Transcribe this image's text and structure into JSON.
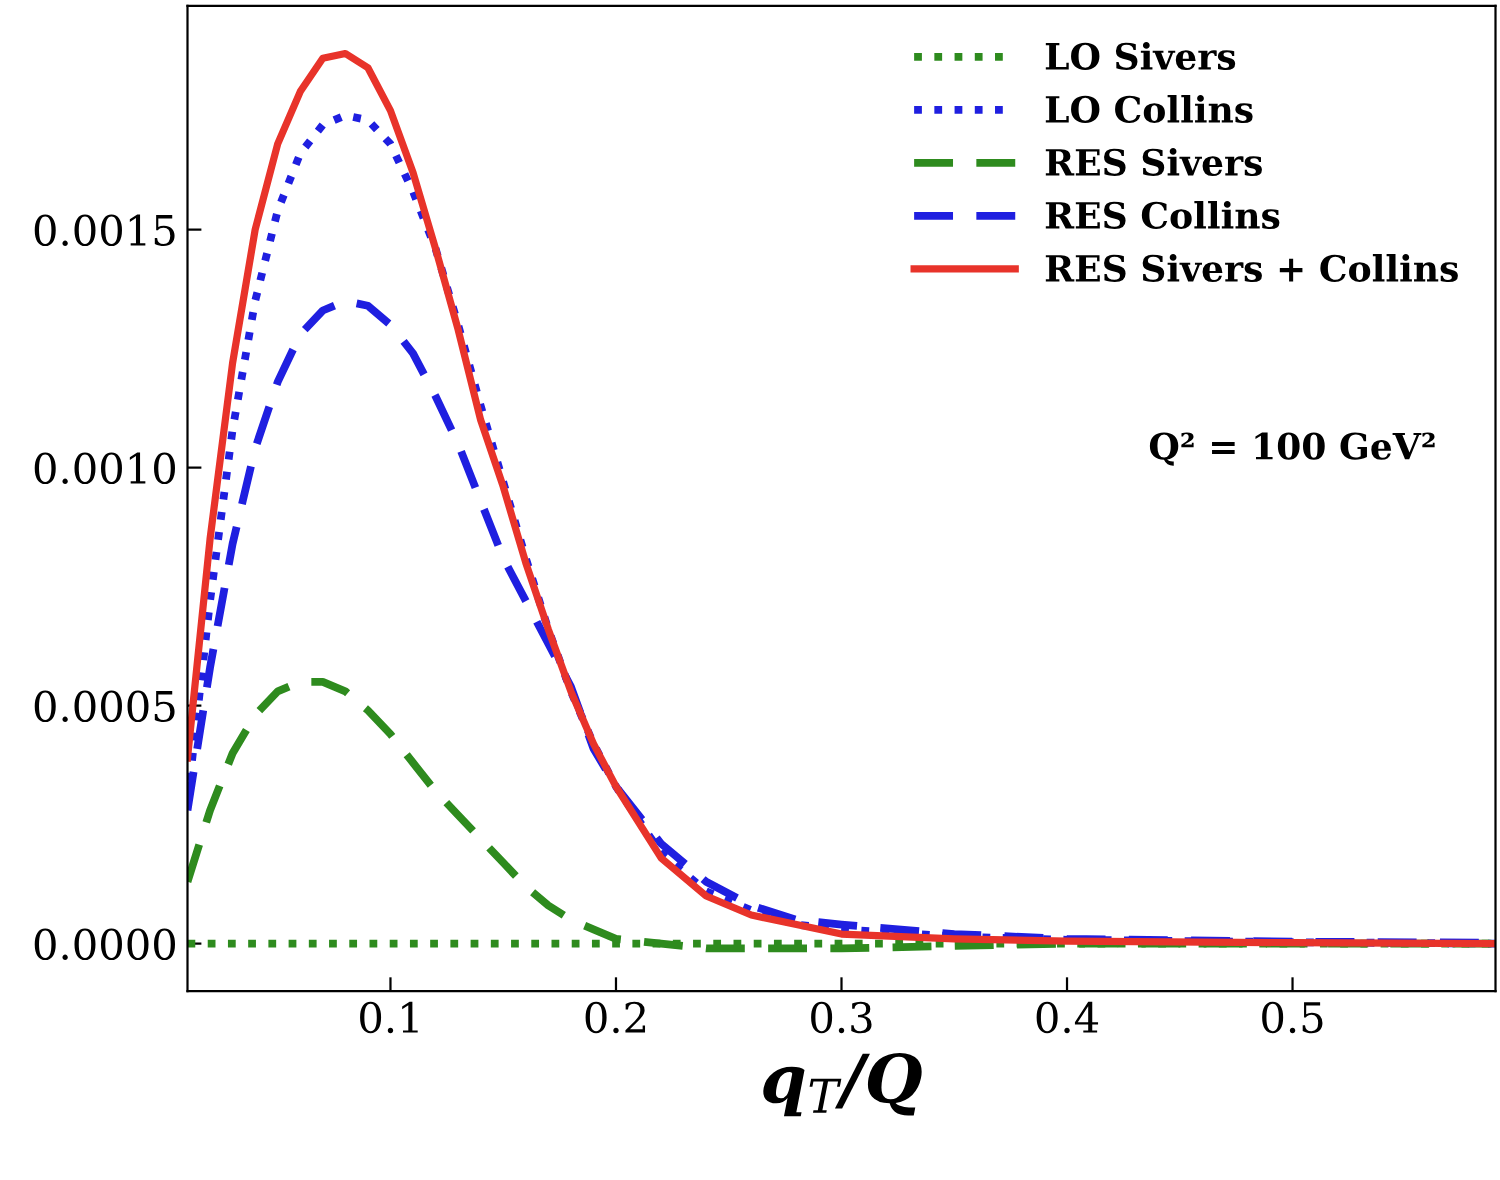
{
  "chart_data": {
    "type": "line",
    "xlabel": "q$_{T}$/Q",
    "x": [
      0.01,
      0.02,
      0.03,
      0.04,
      0.05,
      0.06,
      0.07,
      0.08,
      0.09,
      0.1,
      0.11,
      0.12,
      0.13,
      0.14,
      0.15,
      0.16,
      0.17,
      0.18,
      0.19,
      0.2,
      0.22,
      0.24,
      0.26,
      0.28,
      0.3,
      0.35,
      0.4,
      0.5,
      0.59
    ],
    "series": [
      {
        "name": "LO Sivers",
        "color": "#2e8b1e",
        "line_style": "dotted",
        "values": [
          0,
          0,
          0,
          0,
          0,
          0,
          0,
          0,
          0,
          0,
          0,
          0,
          0,
          0,
          0,
          0,
          0,
          0,
          0,
          0,
          0,
          0,
          0,
          0,
          0,
          0,
          0,
          0,
          0
        ]
      },
      {
        "name": "LO Collins",
        "color": "#1f1fe0",
        "line_style": "dotted",
        "values": [
          0.0003,
          0.00072,
          0.00108,
          0.00135,
          0.00154,
          0.00166,
          0.00172,
          0.00174,
          0.00173,
          0.00168,
          0.00158,
          0.00146,
          0.0013,
          0.00113,
          0.00097,
          0.00081,
          0.00066,
          0.00053,
          0.00042,
          0.00033,
          0.00019,
          0.00011,
          7e-05,
          4e-05,
          3e-05,
          1.5e-05,
          8e-06,
          3e-06,
          0
        ]
      },
      {
        "name": "RES Sivers",
        "color": "#2e8b1e",
        "line_style": "dashed",
        "values": [
          0.00013,
          0.00028,
          0.0004,
          0.00048,
          0.00053,
          0.00055,
          0.00055,
          0.00053,
          0.00049,
          0.00044,
          0.00038,
          0.00032,
          0.00027,
          0.00022,
          0.00017,
          0.00012,
          8e-05,
          5e-05,
          3e-05,
          1e-05,
          0,
          -1e-05,
          -1e-05,
          -1e-05,
          -1e-05,
          -5e-06,
          0,
          0,
          0
        ]
      },
      {
        "name": "RES Collins",
        "color": "#1f1fe0",
        "line_style": "dashed",
        "values": [
          0.00028,
          0.00058,
          0.00084,
          0.00104,
          0.00118,
          0.00128,
          0.00133,
          0.00135,
          0.00134,
          0.0013,
          0.00124,
          0.00115,
          0.00105,
          0.00093,
          0.00081,
          0.00072,
          0.00063,
          0.00054,
          0.00041,
          0.00033,
          0.00021,
          0.00013,
          8e-05,
          5e-05,
          4e-05,
          2e-05,
          1e-05,
          4e-06,
          2e-06
        ]
      },
      {
        "name": "RES Sivers + Collins",
        "color": "#e8332a",
        "line_style": "solid",
        "values": [
          0.00039,
          0.00085,
          0.00122,
          0.0015,
          0.00168,
          0.00179,
          0.00186,
          0.00187,
          0.00184,
          0.00175,
          0.00162,
          0.00146,
          0.00129,
          0.0011,
          0.00096,
          0.0008,
          0.00066,
          0.00053,
          0.00042,
          0.00033,
          0.00018,
          0.0001,
          6e-05,
          4e-05,
          2e-05,
          1e-05,
          5e-06,
          2e-06,
          0
        ]
      }
    ],
    "xlim": [
      0.01,
      0.59
    ],
    "ylim": [
      -0.0001,
      0.00197
    ],
    "xticks": [
      0.1,
      0.2,
      0.3,
      0.4,
      0.5
    ],
    "yticks": [
      {
        "value": 0,
        "label": "0.0000"
      },
      {
        "value": 0.0005,
        "label": "0.0005"
      },
      {
        "value": 0.001,
        "label": "0.0010"
      },
      {
        "value": 0.0015,
        "label": "0.0015"
      }
    ],
    "annotations": [
      "Q² = 100 GeV²"
    ],
    "legend": "top right",
    "grid": false,
    "marker": "none"
  }
}
